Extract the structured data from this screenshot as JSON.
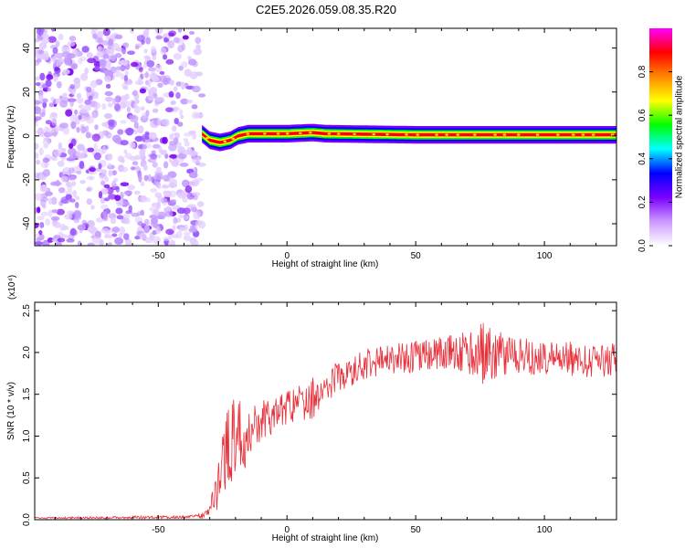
{
  "title": "C2E5.2026.059.08.35.R20",
  "chart_data": [
    {
      "type": "heatmap",
      "xlabel": "Height of straight line (km)",
      "ylabel": "Frequency (Hz)",
      "xlim": [
        -98,
        128
      ],
      "ylim": [
        -50,
        49
      ],
      "xticks": [
        -50,
        0,
        50,
        100
      ],
      "yticks": [
        -40,
        -20,
        0,
        20,
        40
      ],
      "colorbar": {
        "label": "Normalized spectral amplitude",
        "range": [
          0,
          1
        ],
        "ticks": [
          "0.0",
          "0.2",
          "0.4",
          "0.6",
          "0.8"
        ],
        "tick_values": [
          0,
          0.2,
          0.4,
          0.6,
          0.8
        ],
        "colors": [
          "#ffffff",
          "#cc99ff",
          "#7a00ff",
          "#0000ff",
          "#00ffff",
          "#00ff00",
          "#ffff00",
          "#ff8800",
          "#ff0000",
          "#ff00ff"
        ]
      },
      "noise_region": {
        "x": [
          -98,
          -37
        ],
        "y": [
          -50,
          49
        ],
        "amplitude": [
          0.1,
          0.3
        ]
      },
      "signal_band": {
        "x": [
          -33,
          128
        ],
        "centerline": [
          [
            -33,
            1
          ],
          [
            -30,
            -2
          ],
          [
            -26,
            -3
          ],
          [
            -22,
            -2
          ],
          [
            -19,
            0
          ],
          [
            -15,
            1
          ],
          [
            0,
            1
          ],
          [
            10,
            1.5
          ],
          [
            15,
            1
          ],
          [
            50,
            0.5
          ],
          [
            128,
            0.5
          ]
        ],
        "halfwidth": 2.5,
        "peak_amplitude": 0.9
      }
    },
    {
      "type": "line",
      "xlabel": "Height of straight line (km)",
      "ylabel": "SNR (10 * v/v)",
      "multiplier": "(x10⁴)",
      "xlim": [
        -98,
        128
      ],
      "ylim": [
        0,
        2.6
      ],
      "xticks": [
        -50,
        0,
        50,
        100
      ],
      "yticks": [
        "0.0",
        "0.5",
        "1.0",
        "1.5",
        "2.0",
        "2.5"
      ],
      "ytick_values": [
        0,
        0.5,
        1.0,
        1.5,
        2.0,
        2.5
      ],
      "color": "#e8303a",
      "series": [
        {
          "envelope": {
            "x": [
              -98,
              -40,
              -33,
              -30,
              -27,
              -25,
              -22,
              -20,
              -17,
              -15,
              -12,
              -10,
              -5,
              0,
              5,
              10,
              15,
              20,
              30,
              40,
              50,
              60,
              70,
              76,
              80,
              90,
              100,
              110,
              120,
              128
            ],
            "y": [
              0.02,
              0.03,
              0.05,
              0.12,
              0.35,
              0.7,
              0.9,
              1.1,
              0.95,
              1.1,
              1.15,
              1.2,
              1.25,
              1.35,
              1.4,
              1.45,
              1.6,
              1.7,
              1.85,
              1.92,
              1.95,
              2.0,
              2.0,
              2.05,
              1.98,
              1.95,
              1.95,
              1.92,
              1.9,
              1.92
            ]
          },
          "fluctuation": {
            "x": [
              -98,
              -35,
              -30,
              -25,
              -22,
              -20,
              -15,
              -10,
              0,
              10,
              20,
              40,
              60,
              70,
              76,
              80,
              90,
              128
            ],
            "y": [
              0.01,
              0.02,
              0.08,
              0.4,
              0.6,
              0.55,
              0.35,
              0.25,
              0.2,
              0.25,
              0.2,
              0.18,
              0.2,
              0.25,
              0.45,
              0.3,
              0.22,
              0.2
            ]
          }
        }
      ]
    }
  ]
}
